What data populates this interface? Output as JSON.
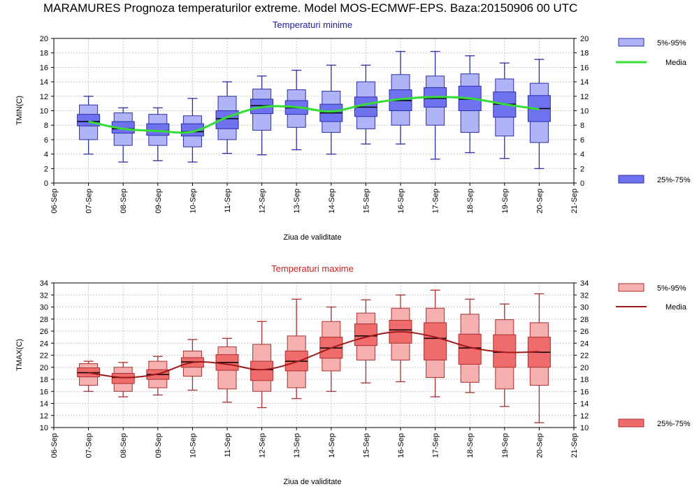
{
  "title": "MARAMURES  Prognoza temperaturilor extreme.  Model MOS-ECMWF-EPS. Baza:20150906 00 UTC",
  "x_ticks": [
    "06-Sep",
    "07-Sep",
    "08-Sep",
    "09-Sep",
    "10-Sep",
    "11-Sep",
    "12-Sep",
    "13-Sep",
    "14-Sep",
    "15-Sep",
    "16-Sep",
    "17-Sep",
    "18-Sep",
    "19-Sep",
    "20-Sep",
    "21-Sep"
  ],
  "chart_data": [
    {
      "type": "box",
      "title": "Temperaturi minime",
      "xlabel": "Ziua de validitate",
      "ylabel": "TMIN(C)",
      "ylim": [
        0,
        20
      ],
      "yticks": [
        0,
        2,
        4,
        6,
        8,
        10,
        12,
        14,
        16,
        18,
        20
      ],
      "grid": true,
      "legend_position": "right",
      "legend": {
        "p5_95": "5%-95%",
        "media": "Media",
        "p25_75": "25%-75%"
      },
      "colors": {
        "box_outer": "#aeb4f5",
        "box_inner": "#6f72ee",
        "stroke": "#2d2fa8",
        "median": "#000000",
        "mean": "#33dd33"
      },
      "categories": [
        "07-Sep",
        "08-Sep",
        "09-Sep",
        "10-Sep",
        "11-Sep",
        "12-Sep",
        "13-Sep",
        "14-Sep",
        "15-Sep",
        "16-Sep",
        "17-Sep",
        "18-Sep",
        "19-Sep",
        "20-Sep"
      ],
      "series": [
        {
          "name": "5%-95%",
          "low": [
            6.0,
            5.2,
            5.2,
            5.0,
            6.0,
            7.3,
            7.7,
            7.0,
            7.5,
            8.0,
            8.0,
            7.0,
            6.5,
            5.6
          ],
          "high": [
            10.8,
            9.7,
            9.5,
            9.3,
            12.0,
            13.0,
            12.9,
            12.7,
            14.0,
            15.0,
            14.8,
            15.1,
            14.4,
            13.8
          ]
        },
        {
          "name": "25%-75%",
          "low": [
            7.9,
            6.9,
            6.6,
            6.5,
            7.5,
            9.6,
            9.5,
            8.5,
            9.2,
            10.0,
            10.5,
            10.0,
            9.1,
            8.5
          ],
          "high": [
            9.5,
            8.5,
            8.2,
            8.2,
            10.0,
            11.6,
            11.4,
            10.9,
            11.9,
            12.9,
            13.2,
            13.4,
            12.6,
            12.1
          ]
        },
        {
          "name": "median",
          "values": [
            8.5,
            7.5,
            7.2,
            7.1,
            8.9,
            10.7,
            10.4,
            9.7,
            10.5,
            11.4,
            11.7,
            11.6,
            10.9,
            10.3
          ]
        },
        {
          "name": "min",
          "values": [
            4.0,
            2.9,
            3.1,
            2.9,
            4.1,
            3.9,
            4.6,
            4.0,
            5.4,
            5.4,
            3.3,
            4.2,
            3.4,
            2.0
          ]
        },
        {
          "name": "max",
          "values": [
            12.0,
            10.4,
            10.4,
            11.7,
            14.0,
            14.8,
            15.6,
            16.3,
            16.3,
            18.2,
            18.2,
            17.6,
            16.6,
            17.1
          ]
        },
        {
          "name": "Media",
          "values": [
            8.5,
            7.5,
            7.2,
            7.1,
            9.1,
            10.5,
            10.5,
            9.9,
            10.9,
            11.6,
            11.9,
            11.7,
            10.9,
            10.2
          ]
        }
      ]
    },
    {
      "type": "box",
      "title": "Temperaturi maxime",
      "xlabel": "Ziua de validitate",
      "ylabel": "TMAX(C)",
      "ylim": [
        10,
        34
      ],
      "yticks": [
        10,
        12,
        14,
        16,
        18,
        20,
        22,
        24,
        26,
        28,
        30,
        32,
        34
      ],
      "grid": true,
      "legend_position": "right",
      "legend": {
        "p5_95": "5%-95%",
        "media": "Media",
        "p25_75": "25%-75%"
      },
      "colors": {
        "box_outer": "#f6b0b0",
        "box_inner": "#f06b6b",
        "stroke": "#a83030",
        "median": "#000000",
        "mean": "#a01818"
      },
      "categories": [
        "07-Sep",
        "08-Sep",
        "09-Sep",
        "10-Sep",
        "11-Sep",
        "12-Sep",
        "13-Sep",
        "14-Sep",
        "15-Sep",
        "16-Sep",
        "17-Sep",
        "18-Sep",
        "19-Sep",
        "20-Sep"
      ],
      "series": [
        {
          "name": "5%-95%",
          "low": [
            17.0,
            16.0,
            16.6,
            18.5,
            16.4,
            16.0,
            16.6,
            19.4,
            21.2,
            21.2,
            18.3,
            17.5,
            16.4,
            17.0
          ],
          "high": [
            20.6,
            20.0,
            21.0,
            22.7,
            23.4,
            23.8,
            25.2,
            27.6,
            29.0,
            29.8,
            29.8,
            28.8,
            27.9,
            27.4
          ]
        },
        {
          "name": "25%-75%",
          "low": [
            18.4,
            17.3,
            18.0,
            20.0,
            19.5,
            17.8,
            19.4,
            21.5,
            23.6,
            24.0,
            21.2,
            20.5,
            20.0,
            20.0
          ],
          "high": [
            19.9,
            19.0,
            19.6,
            21.6,
            22.1,
            21.0,
            22.7,
            25.0,
            27.2,
            27.8,
            27.4,
            25.5,
            25.4,
            25.0
          ]
        },
        {
          "name": "median",
          "values": [
            19.1,
            18.3,
            18.8,
            20.9,
            20.8,
            19.6,
            21.0,
            23.2,
            25.2,
            26.2,
            24.8,
            23.2,
            22.5,
            22.5
          ]
        },
        {
          "name": "min",
          "values": [
            16.0,
            15.1,
            15.4,
            16.2,
            14.2,
            13.3,
            14.8,
            16.0,
            17.4,
            17.6,
            15.1,
            15.8,
            13.5,
            10.8
          ]
        },
        {
          "name": "max",
          "values": [
            21.0,
            20.8,
            21.8,
            24.6,
            24.8,
            27.6,
            31.3,
            30.0,
            31.2,
            32.0,
            32.8,
            31.3,
            30.5,
            32.2
          ]
        },
        {
          "name": "Media",
          "values": [
            19.1,
            18.3,
            18.9,
            20.8,
            20.5,
            19.6,
            20.9,
            23.2,
            25.0,
            25.9,
            25.0,
            23.3,
            22.5,
            22.6
          ]
        }
      ]
    }
  ]
}
